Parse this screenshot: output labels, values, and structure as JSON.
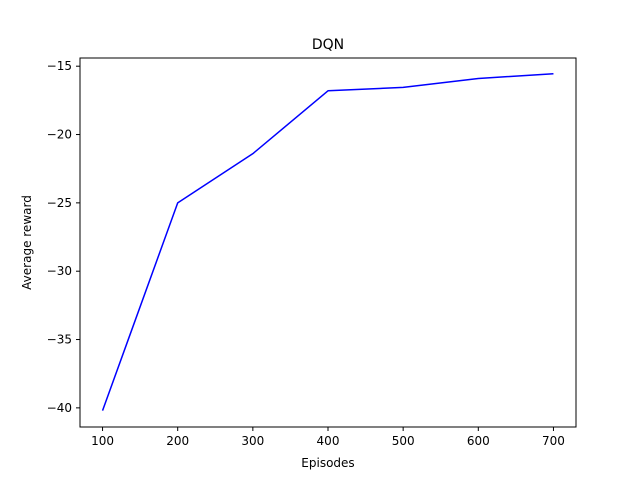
{
  "chart_data": {
    "type": "line",
    "title": "DQN",
    "xlabel": "Episodes",
    "ylabel": "Average reward",
    "x": [
      100,
      200,
      300,
      400,
      500,
      600,
      700
    ],
    "series": [
      {
        "values": [
          -40.2,
          -25.0,
          -21.4,
          -16.8,
          -16.55,
          -15.9,
          -15.55
        ],
        "color": "#0000ff"
      }
    ],
    "xlim": [
      70,
      730
    ],
    "ylim": [
      -41.4,
      -14.4
    ],
    "xticks": [
      100,
      200,
      300,
      400,
      500,
      600,
      700
    ],
    "xtick_labels": [
      "100",
      "200",
      "300",
      "400",
      "500",
      "600",
      "700"
    ],
    "yticks": [
      -40,
      -35,
      -30,
      -25,
      -20,
      -15
    ],
    "ytick_labels": [
      "−40",
      "−35",
      "−30",
      "−25",
      "−20",
      "−15"
    ],
    "grid": false
  }
}
